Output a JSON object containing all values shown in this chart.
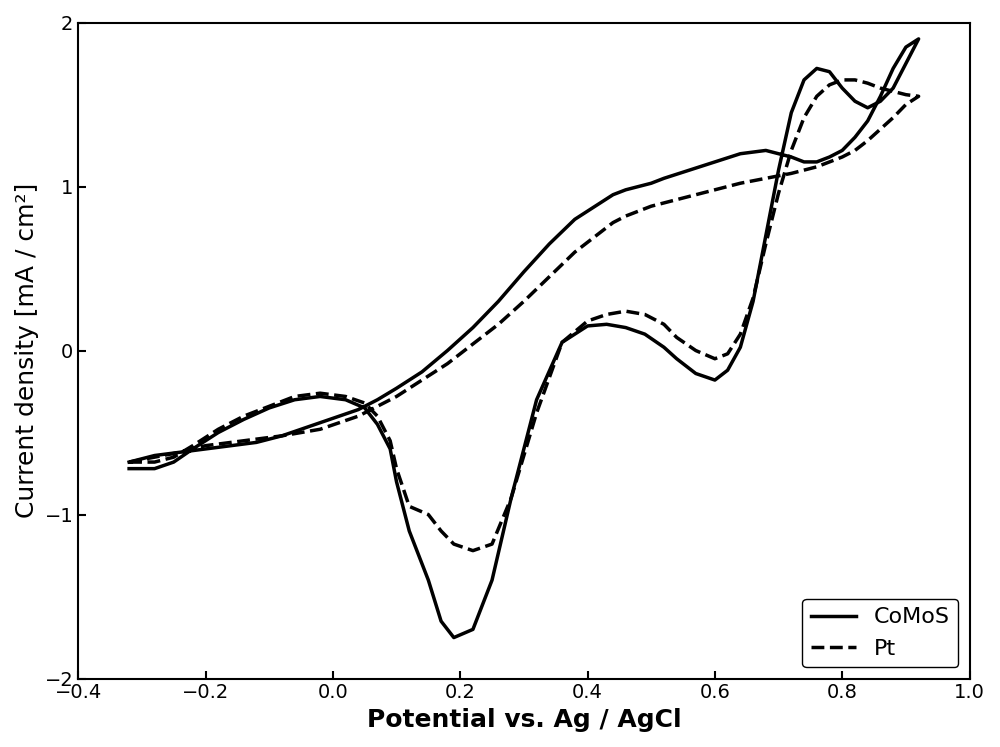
{
  "title": "",
  "xlabel": "Potential vs. Ag / AgCl",
  "ylabel": "Current density [mA / cm²]",
  "xlim": [
    -0.4,
    1.0
  ],
  "ylim": [
    -2.0,
    2.0
  ],
  "xticks": [
    -0.4,
    -0.2,
    0.0,
    0.2,
    0.4,
    0.6,
    0.8,
    1.0
  ],
  "yticks": [
    -2,
    -1,
    0,
    1,
    2
  ],
  "background_color": "#ffffff",
  "line_color": "#000000",
  "legend_labels": [
    "CoMoS",
    "Pt"
  ],
  "comos_x": [
    -0.32,
    -0.28,
    -0.25,
    -0.22,
    -0.18,
    -0.14,
    -0.1,
    -0.06,
    -0.02,
    0.02,
    0.05,
    0.07,
    0.09,
    0.1,
    0.12,
    0.15,
    0.17,
    0.19,
    0.22,
    0.25,
    0.28,
    0.32,
    0.36,
    0.4,
    0.43,
    0.46,
    0.49,
    0.52,
    0.54,
    0.57,
    0.6,
    0.62,
    0.64,
    0.66,
    0.68,
    0.7,
    0.72,
    0.74,
    0.76,
    0.78,
    0.8,
    0.82,
    0.84,
    0.86,
    0.88,
    0.9,
    0.92,
    0.9,
    0.88,
    0.86,
    0.84,
    0.82,
    0.8,
    0.78,
    0.76,
    0.74,
    0.72,
    0.68,
    0.64,
    0.6,
    0.56,
    0.52,
    0.5,
    0.48,
    0.46,
    0.44,
    0.42,
    0.38,
    0.34,
    0.3,
    0.26,
    0.22,
    0.18,
    0.14,
    0.1,
    0.07,
    0.04,
    0.01,
    -0.02,
    -0.05,
    -0.08,
    -0.12,
    -0.16,
    -0.2,
    -0.24,
    -0.28,
    -0.32
  ],
  "comos_y": [
    -0.72,
    -0.72,
    -0.68,
    -0.6,
    -0.5,
    -0.42,
    -0.35,
    -0.3,
    -0.28,
    -0.3,
    -0.35,
    -0.45,
    -0.6,
    -0.8,
    -1.1,
    -1.4,
    -1.65,
    -1.75,
    -1.7,
    -1.4,
    -0.9,
    -0.3,
    0.05,
    0.15,
    0.16,
    0.14,
    0.1,
    0.02,
    -0.05,
    -0.14,
    -0.18,
    -0.12,
    0.02,
    0.3,
    0.7,
    1.1,
    1.45,
    1.65,
    1.72,
    1.7,
    1.6,
    1.52,
    1.48,
    1.52,
    1.6,
    1.75,
    1.9,
    1.85,
    1.72,
    1.55,
    1.4,
    1.3,
    1.22,
    1.18,
    1.15,
    1.15,
    1.18,
    1.22,
    1.2,
    1.15,
    1.1,
    1.05,
    1.02,
    1.0,
    0.98,
    0.95,
    0.9,
    0.8,
    0.65,
    0.48,
    0.3,
    0.14,
    0.0,
    -0.13,
    -0.23,
    -0.3,
    -0.36,
    -0.4,
    -0.44,
    -0.48,
    -0.52,
    -0.56,
    -0.58,
    -0.6,
    -0.62,
    -0.64,
    -0.68
  ],
  "pt_x": [
    -0.32,
    -0.28,
    -0.25,
    -0.22,
    -0.18,
    -0.14,
    -0.1,
    -0.06,
    -0.02,
    0.02,
    0.05,
    0.07,
    0.09,
    0.1,
    0.12,
    0.15,
    0.17,
    0.19,
    0.22,
    0.25,
    0.28,
    0.32,
    0.36,
    0.4,
    0.43,
    0.46,
    0.49,
    0.52,
    0.54,
    0.57,
    0.6,
    0.62,
    0.64,
    0.66,
    0.68,
    0.7,
    0.72,
    0.74,
    0.76,
    0.78,
    0.8,
    0.82,
    0.84,
    0.86,
    0.88,
    0.9,
    0.92,
    0.9,
    0.88,
    0.86,
    0.84,
    0.82,
    0.8,
    0.78,
    0.76,
    0.74,
    0.72,
    0.68,
    0.64,
    0.6,
    0.56,
    0.52,
    0.5,
    0.48,
    0.46,
    0.44,
    0.42,
    0.38,
    0.34,
    0.3,
    0.26,
    0.22,
    0.18,
    0.14,
    0.1,
    0.07,
    0.04,
    0.01,
    -0.02,
    -0.05,
    -0.08,
    -0.12,
    -0.16,
    -0.2,
    -0.24,
    -0.28,
    -0.32
  ],
  "pt_y": [
    -0.68,
    -0.68,
    -0.65,
    -0.58,
    -0.48,
    -0.4,
    -0.34,
    -0.28,
    -0.26,
    -0.28,
    -0.32,
    -0.4,
    -0.55,
    -0.72,
    -0.95,
    -1.0,
    -1.1,
    -1.18,
    -1.22,
    -1.18,
    -0.9,
    -0.38,
    0.05,
    0.18,
    0.22,
    0.24,
    0.22,
    0.16,
    0.08,
    0.0,
    -0.05,
    -0.02,
    0.1,
    0.32,
    0.65,
    0.96,
    1.22,
    1.42,
    1.55,
    1.62,
    1.65,
    1.65,
    1.63,
    1.6,
    1.58,
    1.56,
    1.55,
    1.5,
    1.42,
    1.35,
    1.28,
    1.22,
    1.18,
    1.15,
    1.12,
    1.1,
    1.08,
    1.05,
    1.02,
    0.98,
    0.94,
    0.9,
    0.88,
    0.85,
    0.82,
    0.78,
    0.72,
    0.6,
    0.45,
    0.3,
    0.16,
    0.04,
    -0.08,
    -0.18,
    -0.28,
    -0.34,
    -0.4,
    -0.44,
    -0.48,
    -0.5,
    -0.52,
    -0.54,
    -0.56,
    -0.58,
    -0.62,
    -0.65,
    -0.68
  ],
  "linewidth_solid": 2.5,
  "linewidth_dashed": 2.5,
  "fontsize_label": 18,
  "fontsize_tick": 14,
  "fontsize_legend": 16
}
